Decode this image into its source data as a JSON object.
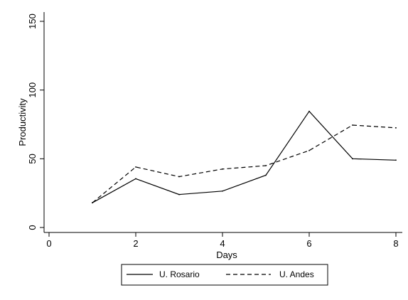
{
  "chart_data": {
    "type": "line",
    "title": "",
    "xlabel": "Days",
    "ylabel": "Productivity",
    "xlim": [
      0,
      8
    ],
    "ylim": [
      0,
      150
    ],
    "x_ticks": [
      0,
      2,
      4,
      6,
      8
    ],
    "y_ticks": [
      0,
      50,
      100,
      150
    ],
    "grid": false,
    "legend_position": "bottom",
    "series": [
      {
        "name": "U. Rosario",
        "line_style": "solid",
        "color": "#000000",
        "x": [
          1,
          2,
          3,
          4,
          5,
          6,
          7,
          8
        ],
        "values": [
          18,
          35.5,
          24,
          26.5,
          38,
          84.5,
          50,
          49
        ]
      },
      {
        "name": "U. Andes",
        "line_style": "dashed",
        "color": "#000000",
        "x": [
          1,
          2,
          3,
          4,
          5,
          6,
          7,
          8
        ],
        "values": [
          18,
          44,
          37,
          42.5,
          45,
          56,
          74.5,
          72.5
        ]
      }
    ]
  }
}
